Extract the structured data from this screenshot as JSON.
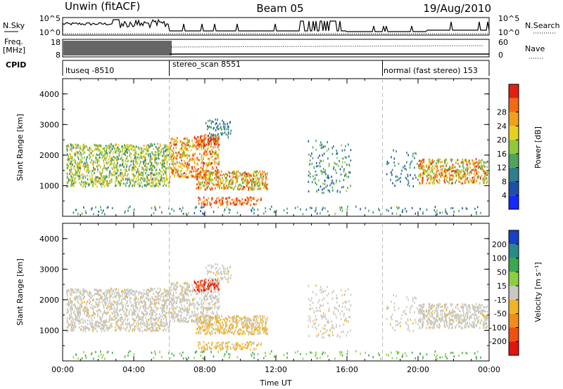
{
  "header": {
    "left_title": "Unwin (fitACF)",
    "center_title": "Beam 05",
    "right_title": "19/Aug/2010"
  },
  "strip_labels": {
    "nsky": "N.Sky",
    "nsearch": "N.Search",
    "freq": "Freq.",
    "freq_unit": "[MHz]",
    "nave": "Nave",
    "cpid": "CPID"
  },
  "strip_ticks": {
    "nsky_top": "10^5",
    "nsky_bottom": "10^0",
    "nsearch_top": "10^5",
    "nsearch_bottom": "10^0",
    "freq_top": "18",
    "freq_bottom": "8",
    "nave_top": "60",
    "nave_bottom": "0"
  },
  "cpid_segments": [
    {
      "label": "ltuseq -8510",
      "start_h": 0,
      "end_h": 6
    },
    {
      "label": "stereo_scan 8551",
      "start_h": 6,
      "end_h": 18
    },
    {
      "label": "normal (fast stereo) 153",
      "start_h": 18,
      "end_h": 24
    }
  ],
  "chart_data": [
    {
      "type": "heatmap",
      "panel": "power",
      "ylabel": "Slant Range [km]",
      "xlim": [
        0,
        24
      ],
      "ylim": [
        0,
        4500
      ],
      "yticks": [
        "1000",
        "2000",
        "3000",
        "4000"
      ],
      "colorbar": {
        "label": "Power [dB]",
        "ticks": [
          "4",
          "8",
          "12",
          "16",
          "20",
          "24",
          "28"
        ],
        "colors": [
          "#1428ff",
          "#1e4fa8",
          "#2f7e8c",
          "#4fa35a",
          "#8fc83c",
          "#e6d21e",
          "#f0a01e",
          "#f06a14",
          "#e02010"
        ]
      }
    },
    {
      "type": "heatmap",
      "panel": "velocity",
      "ylabel": "Slant Range [km]",
      "xlabel": "Time UT",
      "xticks": [
        "00:00",
        "04:00",
        "08:00",
        "12:00",
        "16:00",
        "20:00",
        "00:00"
      ],
      "xlim": [
        0,
        24
      ],
      "ylim": [
        0,
        4500
      ],
      "yticks": [
        "1000",
        "2000",
        "3000",
        "4000"
      ],
      "colorbar": {
        "label": "Velocity [m s⁻¹]",
        "ticks": [
          "200",
          "100",
          "50",
          "15",
          "-15",
          "-50",
          "-100",
          "-200"
        ],
        "colors": [
          "#1840c8",
          "#2a8a8a",
          "#3aa850",
          "#88d040",
          "#c8c8c0",
          "#f0b428",
          "#f08c1e",
          "#f05014",
          "#e01410"
        ]
      }
    }
  ]
}
